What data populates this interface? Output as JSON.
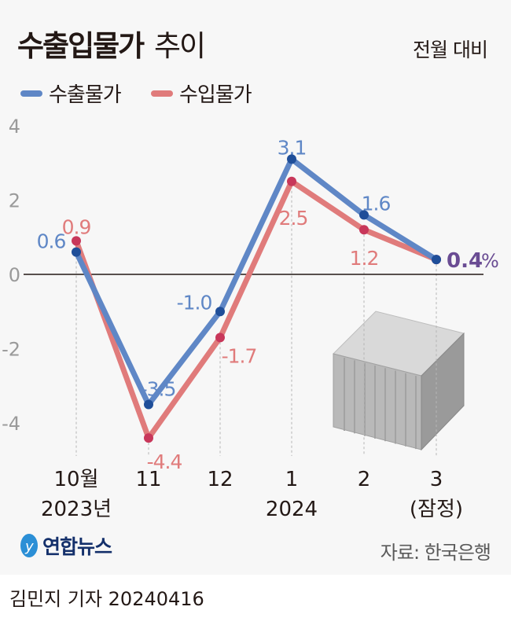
{
  "title": {
    "bold": "수출입물가",
    "light": "추이"
  },
  "unit_label": "전월 대비",
  "chart_data": {
    "type": "line",
    "categories": [
      "10월\n2023년",
      "11",
      "12",
      "1\n2024",
      "2",
      "3\n(잠정)"
    ],
    "x_tick_labels": [
      [
        "10월",
        "2023년"
      ],
      [
        "11"
      ],
      [
        "12"
      ],
      [
        "1",
        "2024"
      ],
      [
        "2"
      ],
      [
        "3",
        "(잠정)"
      ]
    ],
    "series": [
      {
        "name": "수출물가",
        "color": "#5f87c6",
        "marker_color": "#1f4e99",
        "values": [
          0.6,
          -3.5,
          -1.0,
          3.1,
          1.6,
          0.4
        ],
        "labels": [
          "0.6",
          "-3.5",
          "-1.0",
          "3.1",
          "1.6",
          "0.4"
        ]
      },
      {
        "name": "수입물가",
        "color": "#e07b7b",
        "marker_color": "#c8375a",
        "values": [
          0.9,
          -4.4,
          -1.7,
          2.5,
          1.2,
          0.4
        ],
        "labels": [
          "0.9",
          "-4.4",
          "-1.7",
          "2.5",
          "1.2",
          ""
        ]
      }
    ],
    "highlight_label": {
      "value": "0.4",
      "suffix": "%",
      "color": "#6a4c93"
    },
    "y_ticks": [
      "4",
      "2",
      "0",
      "-2",
      "-4"
    ],
    "y_tick_values": [
      4,
      2,
      0,
      -2,
      -4
    ],
    "ylim": [
      -4.5,
      4.2
    ],
    "grid": false,
    "legend_placement": "top-left"
  },
  "footer": {
    "logo": "연합뉴스",
    "source": "자료: 한국은행",
    "byline": "김민지 기자  20240416"
  }
}
